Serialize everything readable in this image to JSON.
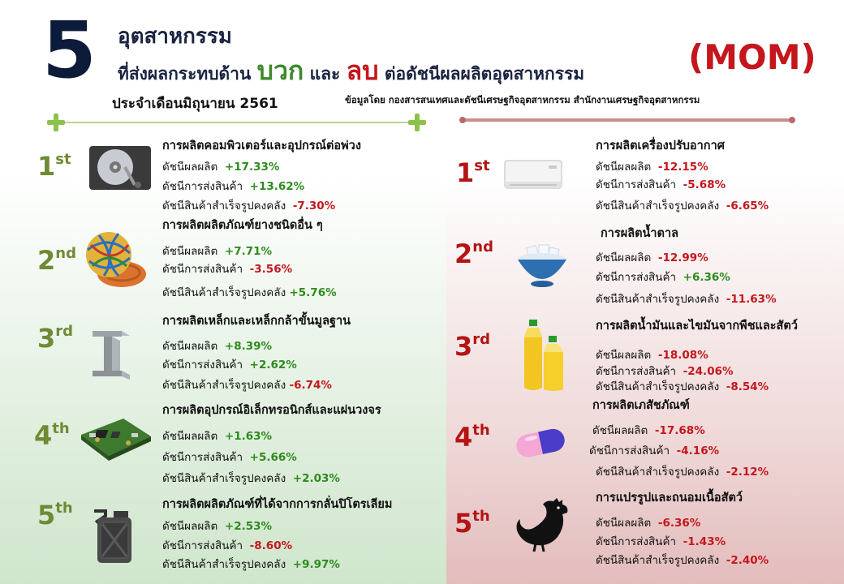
{
  "header": {
    "big_number": "5",
    "line1": "อุตสาหกรรม",
    "line2_pre": "ที่ส่งผลกระทบด้าน ",
    "positive_word": "บวก",
    "line2_mid": " และ ",
    "negative_word": "ลบ",
    "line2_post": " ต่อดัชนีผลผลิตอุตสาหกรรม",
    "period": "ประจำเดือนมิถุนายน 2561",
    "source": "ข้อมูลโดย กองสารสนเทศและดัชนีเศรษฐกิจอุตสาหกรรม สำนักงานเศรษฐกิจอุตสาหกรรม",
    "tag": "(MOM)"
  },
  "labels": {
    "production_index": "ดัชนีผลผลิต",
    "shipment_index": "ดัชนีการส่งสินค้า",
    "inventory_index": "ดัชนีสินค้าสำเร็จรูปคงคลัง"
  },
  "colors": {
    "positive": "#2e8a1e",
    "negative": "#c4161c",
    "rank_positive": "#6f8a34",
    "rank_negative": "#b41414"
  },
  "positive": [
    {
      "rank": "1",
      "suffix": "st",
      "title": "การผลิตคอมพิวเตอร์และอุปกรณ์ต่อพ่วง",
      "icon": "hard-disk-icon",
      "production": "+17.33%",
      "shipment": "+13.62%",
      "inventory": "-7.30%"
    },
    {
      "rank": "2",
      "suffix": "nd",
      "title": "การผลิตผลิตภัณฑ์ยางชนิดอื่น ๆ",
      "icon": "rubber-band-ball-icon",
      "production": "+7.71%",
      "shipment": "-3.56%",
      "inventory": "+5.76%"
    },
    {
      "rank": "3",
      "suffix": "rd",
      "title": "การผลิตเหล็กและเหล็กกล้าขั้นมูลฐาน",
      "icon": "steel-beam-icon",
      "production": "+8.39%",
      "shipment": "+2.62%",
      "inventory": "-6.74%"
    },
    {
      "rank": "4",
      "suffix": "th",
      "title": "การผลิตอุปกรณ์อิเล็กทรอนิกส์และแผ่นวงจร",
      "icon": "circuit-board-icon",
      "production": "+1.63%",
      "shipment": "+5.66%",
      "inventory": "+2.03%"
    },
    {
      "rank": "5",
      "suffix": "th",
      "title": "การผลิตผลิตภัณฑ์ที่ได้จากการกลั่นปิโตรเลียม",
      "icon": "fuel-can-icon",
      "production": "+2.53%",
      "shipment": "-8.60%",
      "inventory": "+9.97%"
    }
  ],
  "negative": [
    {
      "rank": "1",
      "suffix": "st",
      "title": "การผลิตเครื่องปรับอากาศ",
      "icon": "air-conditioner-icon",
      "production": "-12.15%",
      "shipment": "-5.68%",
      "inventory": "-6.65%"
    },
    {
      "rank": "2",
      "suffix": "nd",
      "title": "การผลิตน้ำตาล",
      "icon": "sugar-bowl-icon",
      "production": "-12.99%",
      "shipment": "+6.36%",
      "inventory": "-11.63%"
    },
    {
      "rank": "3",
      "suffix": "rd",
      "title": "การผลิตน้ำมันและไขมันจากพืชและสัตว์",
      "icon": "oil-bottles-icon",
      "production": "-18.08%",
      "shipment": "-24.06%",
      "inventory": "-8.54%"
    },
    {
      "rank": "4",
      "suffix": "th",
      "title": "การผลิตเภสัชภัณฑ์",
      "icon": "pill-capsule-icon",
      "production": "-17.68%",
      "shipment": "-4.16%",
      "inventory": "-2.12%"
    },
    {
      "rank": "5",
      "suffix": "th",
      "title": "การแปรรูปและถนอมเนื้อสัตว์",
      "icon": "chicken-icon",
      "production": "-6.36%",
      "shipment": "-1.43%",
      "inventory": "-2.40%"
    }
  ]
}
